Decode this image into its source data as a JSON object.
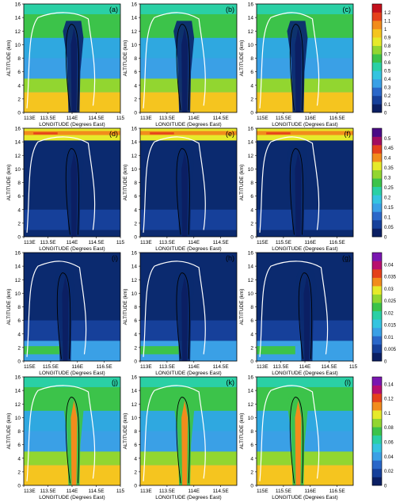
{
  "figure": {
    "ylabel": "ALTITUDE (km)",
    "xlabel": "LONGITUDE (Degrees East)"
  },
  "chart_data": [
    {
      "type": "heatmap",
      "label": "(a)",
      "row": 0,
      "col": 0,
      "ylim": [
        0,
        16
      ],
      "yticks": [
        0,
        2,
        4,
        6,
        8,
        10,
        12,
        14,
        16
      ],
      "xticks": [
        "113E",
        "113.5E",
        "114E",
        "114.5E",
        "115"
      ],
      "background": "#2fa8e0",
      "shaft_center": 0.52,
      "anvil_color": "#2fa8e0"
    },
    {
      "type": "heatmap",
      "label": "(b)",
      "row": 0,
      "col": 1,
      "ylim": [
        0,
        16
      ],
      "yticks": [
        0,
        2,
        4,
        6,
        8,
        10,
        12,
        14,
        16
      ],
      "xticks": [
        "113E",
        "113.5E",
        "114E",
        "114.5E"
      ],
      "background": "#2fa8e0",
      "shaft_center": 0.46,
      "anvil_color": "#1f5fc0"
    },
    {
      "type": "heatmap",
      "label": "(c)",
      "row": 0,
      "col": 2,
      "ylim": [
        0,
        16
      ],
      "yticks": [
        0,
        2,
        4,
        6,
        8,
        10,
        12,
        14,
        16
      ],
      "xticks": [
        "115E",
        "115.5E",
        "116E",
        "116.5E"
      ],
      "background": "#2fa8e0",
      "shaft_center": 0.43,
      "anvil_color": "#1f5fc0"
    },
    {
      "type": "heatmap",
      "label": "(d)",
      "row": 1,
      "col": 0,
      "ylim": [
        0,
        16
      ],
      "yticks": [
        0,
        2,
        4,
        6,
        8,
        10,
        12,
        14,
        16
      ],
      "xticks": [
        "113E",
        "113.5E",
        "114E",
        "114.5E",
        "115"
      ],
      "background": "#0b2a6f",
      "shaft_center": 0.52,
      "anvil_color": "#0e3690"
    },
    {
      "type": "heatmap",
      "label": "(e)",
      "row": 1,
      "col": 1,
      "ylim": [
        0,
        16
      ],
      "yticks": [
        0,
        2,
        4,
        6,
        8,
        10,
        12,
        14,
        16
      ],
      "xticks": [
        "113E",
        "113.5E",
        "114E",
        "114.5E"
      ],
      "background": "#0b2a6f",
      "shaft_center": 0.46,
      "anvil_color": "#0e3690"
    },
    {
      "type": "heatmap",
      "label": "(f)",
      "row": 1,
      "col": 2,
      "ylim": [
        0,
        16
      ],
      "yticks": [
        0,
        2,
        4,
        6,
        8,
        10,
        12,
        14,
        16
      ],
      "xticks": [
        "115E",
        "115.5E",
        "116E",
        "116.5E"
      ],
      "background": "#0b2a6f",
      "shaft_center": 0.43,
      "anvil_color": "#0e3690"
    },
    {
      "type": "heatmap",
      "label": "(i)",
      "row": 2,
      "col": 0,
      "ylim": [
        0,
        16
      ],
      "yticks": [
        0,
        2,
        4,
        6,
        8,
        10,
        12,
        14,
        16
      ],
      "xticks": [
        "115E",
        "115.5E",
        "116E",
        "116.5E"
      ],
      "background": "#0b2a6f",
      "shaft_center": 0.43,
      "anvil_color": "#0b2a6f"
    },
    {
      "type": "heatmap",
      "label": "(h)",
      "row": 2,
      "col": 1,
      "ylim": [
        0,
        16
      ],
      "yticks": [
        0,
        2,
        4,
        6,
        8,
        10,
        12,
        14,
        16
      ],
      "xticks": [
        "113E",
        "113.5E",
        "114E",
        "114.5E"
      ],
      "background": "#0b2a6f",
      "shaft_center": 0.46,
      "anvil_color": "#0b2a6f"
    },
    {
      "type": "heatmap",
      "label": "(g)",
      "row": 2,
      "col": 2,
      "ylim": [
        0,
        16
      ],
      "yticks": [
        0,
        2,
        4,
        6,
        8,
        10,
        12,
        14,
        16
      ],
      "xticks": [
        "113E",
        "113.5E",
        "114E",
        "114.5E",
        "115"
      ],
      "background": "#0b2a6f",
      "shaft_center": 0.52,
      "anvil_color": "#0b2a6f"
    },
    {
      "type": "heatmap",
      "label": "(j)",
      "row": 3,
      "col": 0,
      "ylim": [
        0,
        16
      ],
      "yticks": [
        0,
        2,
        4,
        6,
        8,
        10,
        12,
        14,
        16
      ],
      "xticks": [
        "113E",
        "113.5E",
        "114E",
        "114.5E",
        "115"
      ],
      "background": "#2fa8e0",
      "shaft_center": 0.52,
      "anvil_color": "#2fa8e0"
    },
    {
      "type": "heatmap",
      "label": "(k)",
      "row": 3,
      "col": 1,
      "ylim": [
        0,
        16
      ],
      "yticks": [
        0,
        2,
        4,
        6,
        8,
        10,
        12,
        14,
        16
      ],
      "xticks": [
        "113E",
        "113.5E",
        "114E",
        "114.5E"
      ],
      "background": "#2fa8e0",
      "shaft_center": 0.46,
      "anvil_color": "#2fa8e0"
    },
    {
      "type": "heatmap",
      "label": "(l)",
      "row": 3,
      "col": 2,
      "ylim": [
        0,
        16
      ],
      "yticks": [
        0,
        2,
        4,
        6,
        8,
        10,
        12,
        14,
        16
      ],
      "xticks": [
        "115E",
        "115.5E",
        "116E",
        "116.5E"
      ],
      "background": "#2fa8e0",
      "shaft_center": 0.43,
      "anvil_color": "#2fa8e0"
    }
  ],
  "colorbars": [
    {
      "row": 0,
      "ticks": [
        "0",
        "0.1",
        "0.2",
        "0.3",
        "0.4",
        "0.5",
        "0.6",
        "0.7",
        "0.8",
        "0.9",
        "1",
        "1.1",
        "1.2"
      ],
      "max": 1.3,
      "colors": [
        "#0b1f63",
        "#16409a",
        "#2a67c9",
        "#3aa0e6",
        "#35c4e0",
        "#2ad0a5",
        "#3cc34a",
        "#92d630",
        "#e6ea2a",
        "#f5c51f",
        "#f28c1c",
        "#e5411b",
        "#c4101c"
      ]
    },
    {
      "row": 1,
      "ticks": [
        "0",
        "0.05",
        "0.1",
        "0.15",
        "0.2",
        "0.25",
        "0.3",
        "0.35",
        "0.4",
        "0.45",
        "0.5"
      ],
      "max": 0.55,
      "colors": [
        "#0b1f63",
        "#16409a",
        "#2a67c9",
        "#3aa0e6",
        "#35c4e0",
        "#2ad0a5",
        "#3cc34a",
        "#92d630",
        "#e6ea2a",
        "#f28c1c",
        "#e5411b",
        "#a20d60",
        "#4a0b86"
      ]
    },
    {
      "row": 2,
      "ticks": [
        "0",
        "0.005",
        "0.01",
        "0.015",
        "0.02",
        "0.025",
        "0.03",
        "0.035",
        "0.04"
      ],
      "max": 0.045,
      "colors": [
        "#0b1f63",
        "#16409a",
        "#2a67c9",
        "#3aa0e6",
        "#35c4e0",
        "#2ad0a5",
        "#3cc34a",
        "#92d630",
        "#e6ea2a",
        "#f28c1c",
        "#e5411b",
        "#b80f6e",
        "#7a16b0"
      ]
    },
    {
      "row": 3,
      "ticks": [
        "0",
        "0.02",
        "0.04",
        "0.06",
        "0.08",
        "0.1",
        "0.12",
        "0.14"
      ],
      "max": 0.15,
      "colors": [
        "#0b1f63",
        "#16409a",
        "#2a67c9",
        "#3aa0e6",
        "#35c4e0",
        "#2ad0a5",
        "#3cc34a",
        "#92d630",
        "#e6ea2a",
        "#f28c1c",
        "#e5411b",
        "#b80f6e",
        "#7a16b0"
      ]
    }
  ]
}
